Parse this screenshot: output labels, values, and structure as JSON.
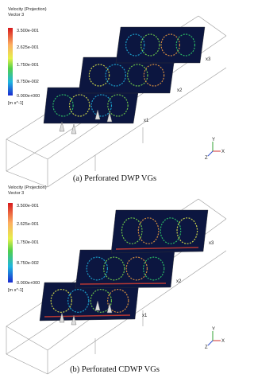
{
  "panels": [
    {
      "legend_title": "Velocity (Projection)",
      "legend_subtitle": "Vector 3",
      "ticks": [
        "3.500e-001",
        "2.625e-001",
        "1.750e-001",
        "8.750e-002",
        "0.000e+000"
      ],
      "unit": "[m s^-1]",
      "plane_labels": [
        "x1",
        "x2",
        "x3"
      ],
      "axes": [
        "X",
        "Y",
        "Z"
      ],
      "caption": "(a) Perforated DWP VGs"
    },
    {
      "legend_title": "Velocity (Projection)",
      "legend_subtitle": "Vector 3",
      "ticks": [
        "3.500e-001",
        "2.625e-001",
        "1.750e-001",
        "8.750e-002",
        "0.000e+000"
      ],
      "unit": "[m s^-1]",
      "plane_labels": [
        "x1",
        "x2",
        "x3"
      ],
      "axes": [
        "X",
        "Y",
        "Z"
      ],
      "caption": "(b) Perforated CDWP VGs"
    }
  ]
}
